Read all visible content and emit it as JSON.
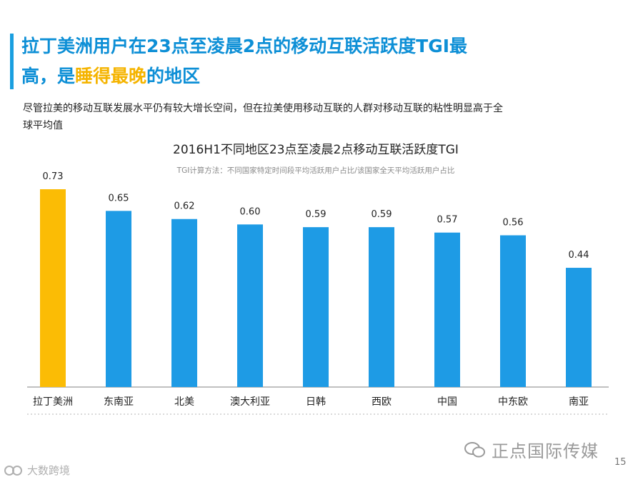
{
  "headline": {
    "part1": "拉丁美洲用户在23点至凌晨2点的移动互联活跃度TGI最高，是",
    "highlight": "睡得最晚",
    "part2": "的地区"
  },
  "lead_text": "尽管拉美的移动互联发展水平仍有较大增长空间，但在拉美使用移动互联的人群对移动互联的粘性明显高于全球平均值",
  "chart_data": {
    "type": "bar",
    "title": "2016H1不同地区23点至凌晨2点移动互联活跃度TGI",
    "subtitle": "TGI计算方法：不同国家特定时间段平均活跃用户占比/该国家全天平均活跃用户占比",
    "categories": [
      "拉丁美洲",
      "东南亚",
      "北美",
      "澳大利亚",
      "日韩",
      "西欧",
      "中国",
      "中东欧",
      "南亚"
    ],
    "values": [
      0.73,
      0.65,
      0.62,
      0.6,
      0.59,
      0.59,
      0.57,
      0.56,
      0.44
    ],
    "value_labels": [
      "0.73",
      "0.65",
      "0.62",
      "0.60",
      "0.59",
      "0.59",
      "0.57",
      "0.56",
      "0.44"
    ],
    "ylim": [
      0,
      0.73
    ],
    "highlight_index": 0,
    "colors": {
      "highlight": "#fbbc05",
      "default": "#1e9be5",
      "axis": "#9a9a9a"
    },
    "grid": false
  },
  "watermark_right": "正点国际传媒",
  "watermark_left": "大数跨境",
  "page_number": "15"
}
